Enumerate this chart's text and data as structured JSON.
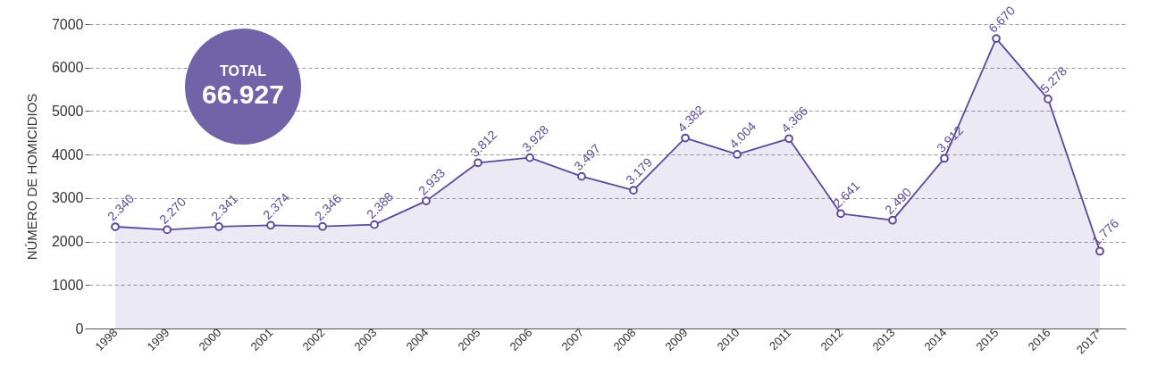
{
  "chart_data": {
    "type": "area",
    "ylabel": "NÚMERO DE HOMICIDIOS",
    "categories": [
      "1998",
      "1999",
      "2000",
      "2001",
      "2002",
      "2003",
      "2004",
      "2005",
      "2006",
      "2007",
      "2008",
      "2009",
      "2010",
      "2011",
      "2012",
      "2013",
      "2014",
      "2015",
      "2016",
      "2017*"
    ],
    "series": [
      {
        "color": "#5b4a9b",
        "values": [
          2340,
          2270,
          2341,
          2374,
          2346,
          2388,
          2933,
          3812,
          3928,
          3497,
          3179,
          4382,
          4004,
          4366,
          2641,
          2490,
          3912,
          6670,
          5278,
          1776
        ],
        "value_labels": [
          "2.340",
          "2.270",
          "2.341",
          "2.374",
          "2.346",
          "2.388",
          "2.933",
          "3.812",
          "3.928",
          "3.497",
          "3.179",
          "4.382",
          "4.004",
          "4.366",
          "2.641",
          "2.490",
          "3.912",
          "6.670",
          "5.278",
          "1.776"
        ]
      }
    ],
    "ylim": [
      0,
      7000
    ],
    "yticks": [
      0,
      1000,
      2000,
      3000,
      4000,
      5000,
      6000,
      7000
    ],
    "grid": "y",
    "marker": "circle",
    "line_style": "solid",
    "annotations": [
      "TOTAL",
      "66.927"
    ]
  }
}
